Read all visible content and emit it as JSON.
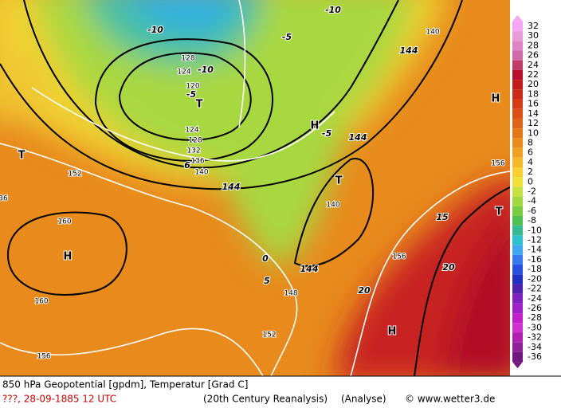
{
  "map": {
    "labels": [
      "-10",
      "-10",
      "-5",
      "-10",
      "-5",
      "T",
      "H",
      "-5",
      "T",
      "T",
      "H",
      "T",
      "H",
      "H",
      "144",
      "144",
      "144",
      "144",
      "140",
      "128",
      "124",
      "120",
      "124",
      "128",
      "132",
      "136",
      "140",
      "152",
      "160",
      "160",
      "156",
      "156",
      "156",
      "140",
      "148",
      "152",
      "15",
      "20",
      "20",
      "0",
      "5",
      "6",
      "36"
    ]
  },
  "legend": {
    "levels": [
      "32",
      "30",
      "28",
      "26",
      "24",
      "22",
      "20",
      "18",
      "16",
      "14",
      "12",
      "10",
      "8",
      "6",
      "4",
      "2",
      "0",
      "-2",
      "-4",
      "-6",
      "-8",
      "-10",
      "-12",
      "-14",
      "-16",
      "-18",
      "-20",
      "-22",
      "-24",
      "-26",
      "-28",
      "-30",
      "-32",
      "-34",
      "-36"
    ],
    "colors": [
      "#f4a6f4",
      "#e99ad8",
      "#e084c4",
      "#d06aa8",
      "#c03a6a",
      "#b8102a",
      "#c41a1a",
      "#cc2a1a",
      "#d43c18",
      "#dc5018",
      "#e06418",
      "#e47818",
      "#ea8c1c",
      "#f0a020",
      "#f4b828",
      "#f8d030",
      "#f0e038",
      "#c8e040",
      "#a0d840",
      "#78cc40",
      "#50c050",
      "#38b890",
      "#30c0d0",
      "#40a8f0",
      "#3878f0",
      "#2850e0",
      "#2030c0",
      "#5020b0",
      "#8020c0",
      "#a020c8",
      "#c020c8",
      "#d030d0",
      "#b020b0",
      "#902098",
      "#701880"
    ]
  },
  "footer": {
    "line1": "850 hPa Geopotential [gpdm], Temperatur [Grad C]",
    "date": "???, 28-09-1885  12 UTC",
    "source": "(20th Century Reanalysis)",
    "mode": "(Analyse)",
    "site": "© www.wetter3.de"
  }
}
